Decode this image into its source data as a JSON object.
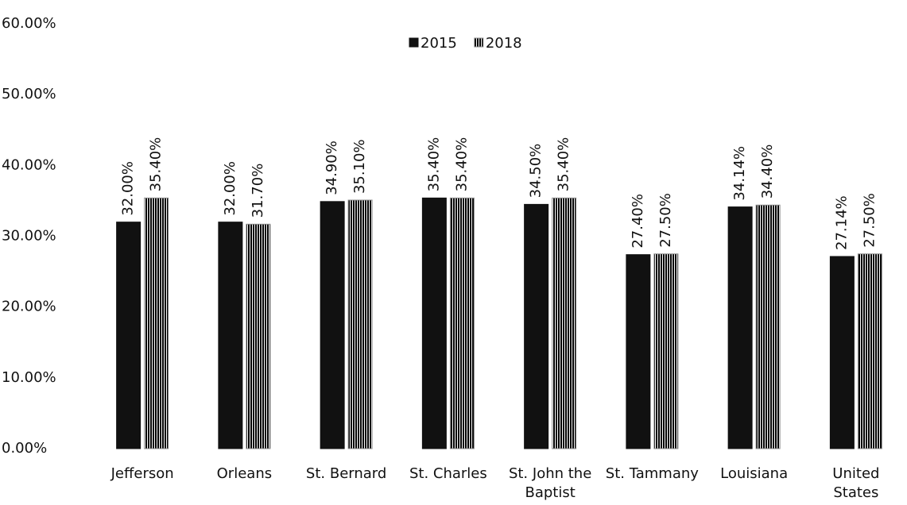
{
  "chart_data": {
    "type": "bar",
    "categories": [
      "Jefferson",
      "Orleans",
      "St. Bernard",
      "St. Charles",
      "St. John the Baptist",
      "St. Tammany",
      "Louisiana",
      "United States"
    ],
    "series": [
      {
        "name": "2015",
        "color": "#111111",
        "values": [
          32.0,
          32.0,
          34.9,
          35.4,
          34.5,
          27.4,
          34.14,
          27.14
        ],
        "value_labels": [
          "32.00%",
          "32.00%",
          "34.90%",
          "35.40%",
          "34.50%",
          "27.40%",
          "34.14%",
          "27.14%"
        ]
      },
      {
        "name": "2018",
        "color": "#8c8c8c",
        "values": [
          35.4,
          31.7,
          35.1,
          35.4,
          35.4,
          27.5,
          34.4,
          27.5
        ],
        "value_labels": [
          "35.40%",
          "31.70%",
          "35.10%",
          "35.40%",
          "35.40%",
          "27.50%",
          "34.40%",
          "27.50%"
        ]
      }
    ],
    "ylim": [
      0,
      60
    ],
    "yticks": [
      {
        "value": 0,
        "label": "0.00%"
      },
      {
        "value": 10,
        "label": "10.00%"
      },
      {
        "value": 20,
        "label": "20.00%"
      },
      {
        "value": 30,
        "label": "30.00%"
      },
      {
        "value": 40,
        "label": "40.00%"
      },
      {
        "value": 50,
        "label": "50.00%"
      },
      {
        "value": 60,
        "label": "60.00%"
      }
    ],
    "grid": false,
    "legend": "top"
  }
}
